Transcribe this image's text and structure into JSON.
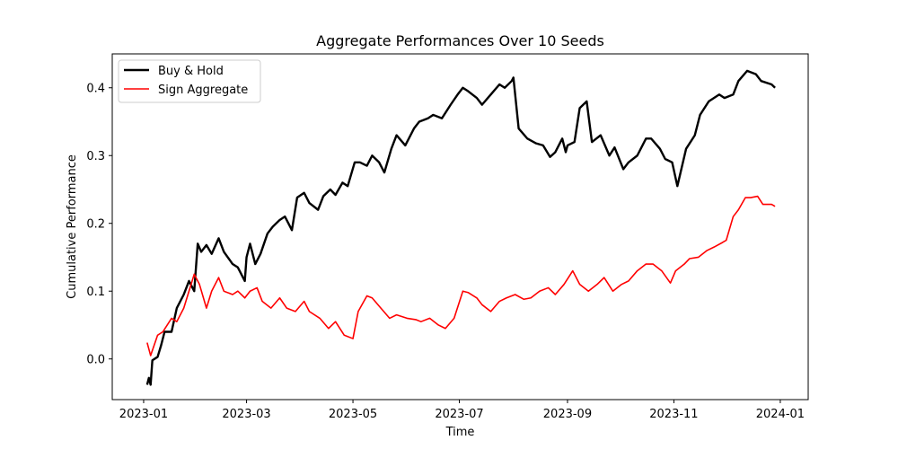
{
  "chart_data": {
    "type": "line",
    "title": "Aggregate Performances Over 10 Seeds",
    "xlabel": "Time",
    "ylabel": "Cumulative Performance",
    "xlim": [
      "2022-12-14",
      "2024-01-17"
    ],
    "ylim": [
      -0.06,
      0.45
    ],
    "x_ticks": [
      "2023-01",
      "2023-03",
      "2023-05",
      "2023-07",
      "2023-09",
      "2023-11",
      "2024-01"
    ],
    "y_ticks": [
      0.0,
      0.1,
      0.2,
      0.3,
      0.4
    ],
    "grid": false,
    "legend": "top-left",
    "series": [
      {
        "name": "Buy & Hold",
        "color": "#000000",
        "x": [
          "2023-01-03",
          "2023-01-04",
          "2023-01-05",
          "2023-01-06",
          "2023-01-09",
          "2023-01-11",
          "2023-01-13",
          "2023-01-17",
          "2023-01-20",
          "2023-01-24",
          "2023-01-27",
          "2023-01-30",
          "2023-02-01",
          "2023-02-03",
          "2023-02-06",
          "2023-02-09",
          "2023-02-13",
          "2023-02-16",
          "2023-02-21",
          "2023-02-24",
          "2023-02-28",
          "2023-03-01",
          "2023-03-03",
          "2023-03-06",
          "2023-03-09",
          "2023-03-13",
          "2023-03-16",
          "2023-03-20",
          "2023-03-23",
          "2023-03-27",
          "2023-03-30",
          "2023-04-03",
          "2023-04-06",
          "2023-04-11",
          "2023-04-14",
          "2023-04-18",
          "2023-04-21",
          "2023-04-25",
          "2023-04-28",
          "2023-05-02",
          "2023-05-05",
          "2023-05-09",
          "2023-05-12",
          "2023-05-16",
          "2023-05-19",
          "2023-05-23",
          "2023-05-26",
          "2023-05-31",
          "2023-06-05",
          "2023-06-08",
          "2023-06-13",
          "2023-06-16",
          "2023-06-21",
          "2023-06-26",
          "2023-06-30",
          "2023-07-03",
          "2023-07-06",
          "2023-07-11",
          "2023-07-14",
          "2023-07-19",
          "2023-07-24",
          "2023-07-27",
          "2023-07-31",
          "2023-08-01",
          "2023-08-04",
          "2023-08-09",
          "2023-08-14",
          "2023-08-18",
          "2023-08-22",
          "2023-08-25",
          "2023-08-29",
          "2023-08-31",
          "2023-09-01",
          "2023-09-05",
          "2023-09-08",
          "2023-09-12",
          "2023-09-15",
          "2023-09-20",
          "2023-09-25",
          "2023-09-28",
          "2023-10-03",
          "2023-10-06",
          "2023-10-11",
          "2023-10-16",
          "2023-10-19",
          "2023-10-24",
          "2023-10-27",
          "2023-10-31",
          "2023-11-03",
          "2023-11-08",
          "2023-11-13",
          "2023-11-16",
          "2023-11-21",
          "2023-11-27",
          "2023-11-30",
          "2023-12-05",
          "2023-12-08",
          "2023-12-13",
          "2023-12-18",
          "2023-12-21",
          "2023-12-27",
          "2023-12-29"
        ],
        "y": [
          -0.038,
          -0.028,
          -0.038,
          -0.002,
          0.003,
          0.02,
          0.04,
          0.04,
          0.075,
          0.095,
          0.115,
          0.1,
          0.17,
          0.158,
          0.168,
          0.155,
          0.178,
          0.158,
          0.14,
          0.135,
          0.115,
          0.15,
          0.17,
          0.14,
          0.155,
          0.185,
          0.195,
          0.205,
          0.21,
          0.19,
          0.238,
          0.245,
          0.23,
          0.22,
          0.24,
          0.25,
          0.242,
          0.26,
          0.255,
          0.29,
          0.29,
          0.285,
          0.3,
          0.29,
          0.275,
          0.31,
          0.33,
          0.315,
          0.34,
          0.35,
          0.355,
          0.36,
          0.355,
          0.375,
          0.39,
          0.4,
          0.395,
          0.385,
          0.375,
          0.39,
          0.405,
          0.4,
          0.41,
          0.415,
          0.34,
          0.325,
          0.318,
          0.315,
          0.298,
          0.305,
          0.325,
          0.305,
          0.315,
          0.32,
          0.37,
          0.38,
          0.32,
          0.33,
          0.3,
          0.312,
          0.28,
          0.29,
          0.3,
          0.325,
          0.325,
          0.31,
          0.295,
          0.29,
          0.255,
          0.31,
          0.33,
          0.36,
          0.38,
          0.39,
          0.385,
          0.39,
          0.41,
          0.425,
          0.42,
          0.41,
          0.405,
          0.4
        ]
      },
      {
        "name": "Sign Aggregate",
        "color": "#ff0000",
        "x": [
          "2023-01-03",
          "2023-01-05",
          "2023-01-09",
          "2023-01-12",
          "2023-01-17",
          "2023-01-20",
          "2023-01-24",
          "2023-01-27",
          "2023-01-30",
          "2023-02-02",
          "2023-02-06",
          "2023-02-09",
          "2023-02-13",
          "2023-02-16",
          "2023-02-21",
          "2023-02-24",
          "2023-02-28",
          "2023-03-03",
          "2023-03-07",
          "2023-03-10",
          "2023-03-15",
          "2023-03-20",
          "2023-03-24",
          "2023-03-29",
          "2023-04-03",
          "2023-04-06",
          "2023-04-12",
          "2023-04-17",
          "2023-04-21",
          "2023-04-26",
          "2023-05-01",
          "2023-05-04",
          "2023-05-09",
          "2023-05-12",
          "2023-05-17",
          "2023-05-22",
          "2023-05-26",
          "2023-06-01",
          "2023-06-06",
          "2023-06-09",
          "2023-06-14",
          "2023-06-19",
          "2023-06-23",
          "2023-06-28",
          "2023-07-03",
          "2023-07-06",
          "2023-07-11",
          "2023-07-14",
          "2023-07-19",
          "2023-07-24",
          "2023-07-28",
          "2023-08-02",
          "2023-08-07",
          "2023-08-11",
          "2023-08-16",
          "2023-08-21",
          "2023-08-25",
          "2023-08-30",
          "2023-09-04",
          "2023-09-08",
          "2023-09-13",
          "2023-09-18",
          "2023-09-22",
          "2023-09-27",
          "2023-10-02",
          "2023-10-06",
          "2023-10-11",
          "2023-10-16",
          "2023-10-20",
          "2023-10-25",
          "2023-10-30",
          "2023-11-02",
          "2023-11-07",
          "2023-11-10",
          "2023-11-15",
          "2023-11-20",
          "2023-11-24",
          "2023-11-29",
          "2023-12-01",
          "2023-12-05",
          "2023-12-08",
          "2023-12-12",
          "2023-12-15",
          "2023-12-19",
          "2023-12-22",
          "2023-12-27",
          "2023-12-29"
        ],
        "y": [
          0.024,
          0.005,
          0.035,
          0.04,
          0.06,
          0.055,
          0.075,
          0.1,
          0.125,
          0.11,
          0.075,
          0.1,
          0.12,
          0.1,
          0.095,
          0.1,
          0.09,
          0.1,
          0.105,
          0.085,
          0.075,
          0.09,
          0.075,
          0.07,
          0.085,
          0.07,
          0.06,
          0.045,
          0.055,
          0.035,
          0.03,
          0.07,
          0.093,
          0.09,
          0.075,
          0.06,
          0.065,
          0.06,
          0.058,
          0.055,
          0.06,
          0.05,
          0.045,
          0.06,
          0.1,
          0.098,
          0.09,
          0.08,
          0.07,
          0.085,
          0.09,
          0.095,
          0.088,
          0.09,
          0.1,
          0.105,
          0.095,
          0.11,
          0.13,
          0.11,
          0.1,
          0.11,
          0.12,
          0.1,
          0.11,
          0.115,
          0.13,
          0.14,
          0.14,
          0.13,
          0.112,
          0.13,
          0.14,
          0.148,
          0.15,
          0.16,
          0.165,
          0.172,
          0.175,
          0.21,
          0.22,
          0.238,
          0.238,
          0.24,
          0.228,
          0.228,
          0.225
        ]
      }
    ]
  }
}
